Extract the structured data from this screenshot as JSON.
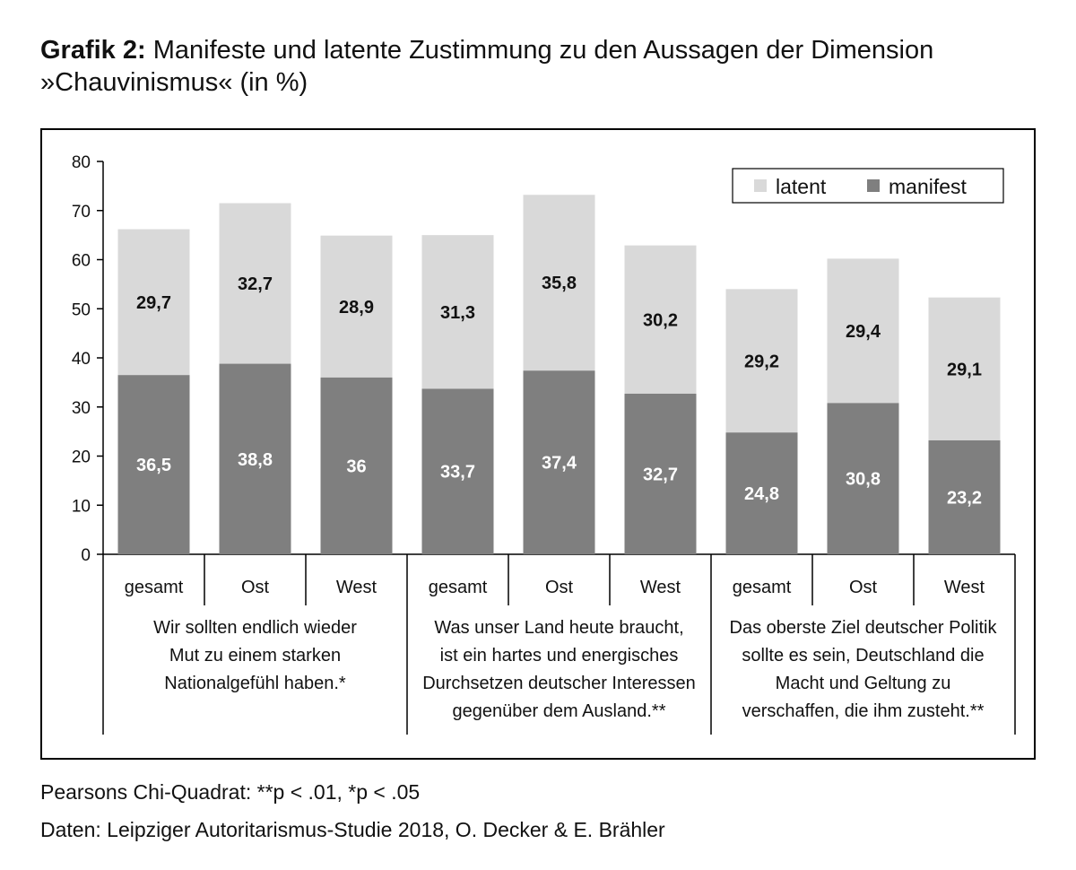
{
  "title": {
    "prefix": "Grafik 2:",
    "line1": "Manifeste und latente Zustimmung zu den Aussagen der Dimension",
    "line2": "»Chauvinismus« (in %)"
  },
  "footnotes": {
    "significance": "Pearsons Chi-Quadrat: **p < .01, *p < .05",
    "source": "Daten: Leipziger Autoritarismus-Studie 2018, O. Decker & E. Brähler"
  },
  "colors": {
    "latent": "#d9d9d9",
    "manifest": "#7f7f7f",
    "axis": "#000000"
  },
  "chart_data": {
    "type": "bar",
    "stacked": true,
    "ylim": [
      0,
      80
    ],
    "yticks": [
      0,
      10,
      20,
      30,
      40,
      50,
      60,
      70,
      80
    ],
    "legend": {
      "position": "top-right",
      "entries": [
        "latent",
        "manifest"
      ]
    },
    "categories": [
      "gesamt",
      "Ost",
      "West",
      "gesamt",
      "Ost",
      "West",
      "gesamt",
      "Ost",
      "West"
    ],
    "groups": [
      {
        "label_lines": [
          "Wir sollten endlich wieder",
          "Mut zu einem starken",
          "Nationalgefühl haben.*"
        ]
      },
      {
        "label_lines": [
          "Was unser Land heute braucht,",
          "ist ein hartes und energisches",
          "Durchsetzen deutscher Interessen",
          "gegenüber dem Ausland.**"
        ]
      },
      {
        "label_lines": [
          "Das oberste Ziel deutscher Politik",
          "sollte es sein, Deutschland die",
          "Macht und Geltung zu",
          "verschaffen, die ihm zusteht.**"
        ]
      }
    ],
    "series": [
      {
        "name": "manifest",
        "values": [
          36.5,
          38.8,
          36,
          33.7,
          37.4,
          32.7,
          24.8,
          30.8,
          23.2
        ],
        "labels": [
          "36,5",
          "38,8",
          "36",
          "33,7",
          "37,4",
          "32,7",
          "24,8",
          "30,8",
          "23,2"
        ]
      },
      {
        "name": "latent",
        "values": [
          29.7,
          32.7,
          28.9,
          31.3,
          35.8,
          30.2,
          29.2,
          29.4,
          29.1
        ],
        "labels": [
          "29,7",
          "32,7",
          "28,9",
          "31,3",
          "35,8",
          "30,2",
          "29,2",
          "29,4",
          "29,1"
        ]
      }
    ]
  }
}
